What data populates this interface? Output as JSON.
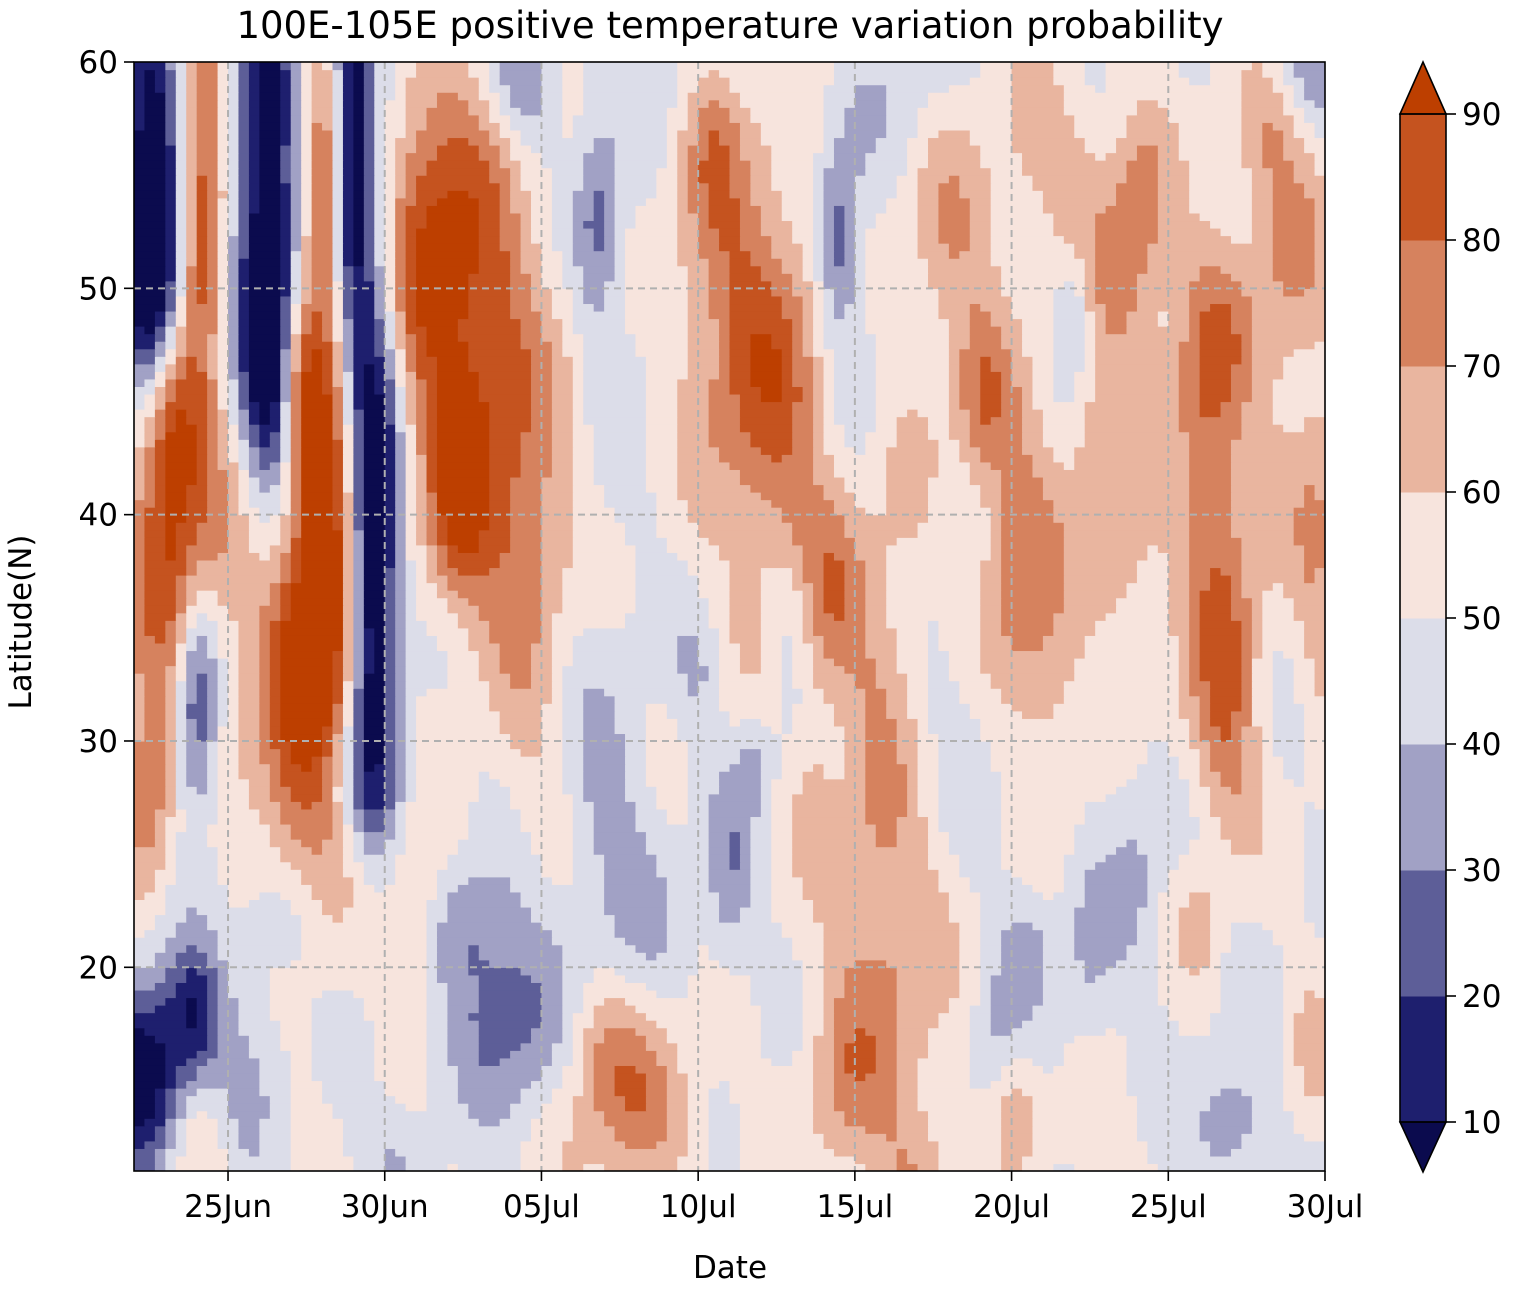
{
  "chart_data": {
    "type": "heatmap",
    "title": "100E-105E positive temperature variation probability",
    "xlabel": "Date",
    "ylabel": "Latitude(N)",
    "x_start_date": "2020-06-22",
    "x_tick_labels": [
      "25Jun",
      "30Jun",
      "05Jul",
      "10Jul",
      "15Jul",
      "20Jul",
      "25Jul",
      "30Jul"
    ],
    "x_tick_days": [
      3,
      8,
      13,
      18,
      23,
      28,
      33,
      38
    ],
    "xlim_days": [
      0,
      38
    ],
    "y_ticks": [
      20,
      30,
      40,
      50,
      60
    ],
    "ylim": [
      11,
      60
    ],
    "grid": true,
    "grid_style": "dashed",
    "colorbar": {
      "levels": [
        10,
        20,
        30,
        40,
        50,
        60,
        70,
        80,
        90
      ],
      "tick_labels": [
        "10",
        "20",
        "30",
        "40",
        "50",
        "60",
        "70",
        "80",
        "90"
      ],
      "colors": [
        "#1e1f6e",
        "#5d5e98",
        "#a1a1c5",
        "#dcdde9",
        "#f7e4dd",
        "#e9b59f",
        "#d6825e",
        "#c5531f",
        "#bd3f00"
      ],
      "under_color": "#0b0b4e",
      "over_color": "#bd3f00",
      "extend": "both"
    },
    "grid_resolution": {
      "dx_days": 1,
      "dy_deg": 1
    },
    "features": [
      {
        "x": 0.5,
        "y": 56,
        "sx": 0.6,
        "sy": 6,
        "a": -48
      },
      {
        "x": 0.6,
        "y": 50,
        "sx": 0.7,
        "sy": 3,
        "a": -40
      },
      {
        "x": 1.2,
        "y": 44,
        "sx": 0.6,
        "sy": 3,
        "a": 32
      },
      {
        "x": 1.4,
        "y": 38,
        "sx": 1.2,
        "sy": 5,
        "a": 38
      },
      {
        "x": 0.4,
        "y": 28,
        "sx": 0.6,
        "sy": 3,
        "a": 28
      },
      {
        "x": 2.0,
        "y": 32,
        "sx": 0.5,
        "sy": 4,
        "a": -40
      },
      {
        "x": 2.2,
        "y": 54,
        "sx": 0.5,
        "sy": 6,
        "a": 38
      },
      {
        "x": 0.4,
        "y": 15,
        "sx": 1.0,
        "sy": 3,
        "a": -52
      },
      {
        "x": 2.0,
        "y": 18,
        "sx": 0.6,
        "sy": 2,
        "a": -30
      },
      {
        "x": 4.2,
        "y": 54,
        "sx": 0.7,
        "sy": 8,
        "a": -50
      },
      {
        "x": 4.5,
        "y": 46,
        "sx": 0.6,
        "sy": 4,
        "a": -35
      },
      {
        "x": 5.5,
        "y": 32,
        "sx": 1.2,
        "sy": 7,
        "a": 44
      },
      {
        "x": 6.2,
        "y": 40,
        "sx": 0.8,
        "sy": 6,
        "a": 38
      },
      {
        "x": 5.2,
        "y": 46,
        "sx": 0.5,
        "sy": 3,
        "a": 30
      },
      {
        "x": 6.0,
        "y": 54,
        "sx": 0.5,
        "sy": 4,
        "a": 28
      },
      {
        "x": 7.0,
        "y": 60,
        "sx": 0.4,
        "sy": 3,
        "a": -30
      },
      {
        "x": 7.6,
        "y": 46,
        "sx": 0.7,
        "sy": 9,
        "a": -45
      },
      {
        "x": 7.0,
        "y": 54,
        "sx": 0.4,
        "sy": 5,
        "a": -35
      },
      {
        "x": 7.2,
        "y": 28,
        "sx": 1.0,
        "sy": 2.5,
        "a": -22
      },
      {
        "x": 7.6,
        "y": 36,
        "sx": 0.5,
        "sy": 6,
        "a": -42
      },
      {
        "x": 9.5,
        "y": 53,
        "sx": 1.8,
        "sy": 5,
        "a": 38
      },
      {
        "x": 11.0,
        "y": 45,
        "sx": 1.8,
        "sy": 5,
        "a": 32
      },
      {
        "x": 12.5,
        "y": 37,
        "sx": 1.2,
        "sy": 4,
        "a": 25
      },
      {
        "x": 10.3,
        "y": 40,
        "sx": 0.6,
        "sy": 3,
        "a": 25
      },
      {
        "x": 9.0,
        "y": 22,
        "sx": 0.7,
        "sy": 3,
        "a": 18
      },
      {
        "x": 11.8,
        "y": 18,
        "sx": 1.3,
        "sy": 3,
        "a": -28
      },
      {
        "x": 10.5,
        "y": 22,
        "sx": 1.0,
        "sy": 2,
        "a": -14
      },
      {
        "x": 16.0,
        "y": 14,
        "sx": 1.5,
        "sy": 3,
        "a": 25
      },
      {
        "x": 14.8,
        "y": 17,
        "sx": 0.8,
        "sy": 2,
        "a": 12
      },
      {
        "x": 19.0,
        "y": 50,
        "sx": 1.5,
        "sy": 6,
        "a": 22
      },
      {
        "x": 20.5,
        "y": 44,
        "sx": 1.3,
        "sy": 6,
        "a": 25
      },
      {
        "x": 22.2,
        "y": 36,
        "sx": 1.0,
        "sy": 3,
        "a": 22
      },
      {
        "x": 21.5,
        "y": 29,
        "sx": 0.6,
        "sy": 3,
        "a": 12
      },
      {
        "x": 12.5,
        "y": 59,
        "sx": 0.8,
        "sy": 2,
        "a": -20
      },
      {
        "x": 18.5,
        "y": 57,
        "sx": 0.6,
        "sy": 3,
        "a": 15
      },
      {
        "x": 22.5,
        "y": 52,
        "sx": 0.5,
        "sy": 3,
        "a": -30
      },
      {
        "x": 21.0,
        "y": 32,
        "sx": 0.5,
        "sy": 3,
        "a": -10
      },
      {
        "x": 19.8,
        "y": 29,
        "sx": 0.4,
        "sy": 1.5,
        "a": -12
      },
      {
        "x": 19.0,
        "y": 24,
        "sx": 0.5,
        "sy": 3,
        "a": -16
      },
      {
        "x": 18.0,
        "y": 33,
        "sx": 0.5,
        "sy": 2,
        "a": -10
      },
      {
        "x": 15.0,
        "y": 26,
        "sx": 1.0,
        "sy": 4,
        "a": -12
      },
      {
        "x": 24.5,
        "y": 38,
        "sx": 0.8,
        "sy": 7,
        "a": 10
      },
      {
        "x": 23.5,
        "y": 30,
        "sx": 0.8,
        "sy": 5,
        "a": 10
      },
      {
        "x": 24.0,
        "y": 20,
        "sx": 1.3,
        "sy": 6,
        "a": 22
      },
      {
        "x": 22.5,
        "y": 15,
        "sx": 0.8,
        "sy": 3,
        "a": 15
      },
      {
        "x": 25.0,
        "y": 10,
        "sx": 1.0,
        "sy": 3,
        "a": 15
      },
      {
        "x": 26.0,
        "y": 52,
        "sx": 1.0,
        "sy": 4,
        "a": 20
      },
      {
        "x": 27.0,
        "y": 45,
        "sx": 0.6,
        "sy": 2.5,
        "a": 22
      },
      {
        "x": 28.5,
        "y": 36,
        "sx": 1.0,
        "sy": 4,
        "a": 25
      },
      {
        "x": 28.0,
        "y": 42,
        "sx": 0.8,
        "sy": 4,
        "a": 15
      },
      {
        "x": 29.0,
        "y": 56,
        "sx": 1.5,
        "sy": 3,
        "a": 15
      },
      {
        "x": 31.5,
        "y": 50,
        "sx": 1.0,
        "sy": 4,
        "a": 20
      },
      {
        "x": 32.2,
        "y": 54,
        "sx": 0.6,
        "sy": 3,
        "a": 15
      },
      {
        "x": 31.5,
        "y": 38,
        "sx": 0.8,
        "sy": 3,
        "a": 18
      },
      {
        "x": 30.5,
        "y": 43,
        "sx": 0.6,
        "sy": 3,
        "a": 12
      },
      {
        "x": 29.5,
        "y": 30,
        "sx": 0.8,
        "sy": 3,
        "a": 10
      },
      {
        "x": 28.2,
        "y": 14,
        "sx": 0.5,
        "sy": 2,
        "a": 12
      },
      {
        "x": 34.2,
        "y": 42,
        "sx": 0.8,
        "sy": 6,
        "a": 25
      },
      {
        "x": 35.0,
        "y": 33,
        "sx": 0.7,
        "sy": 5,
        "a": 25
      },
      {
        "x": 34.5,
        "y": 48,
        "sx": 1.0,
        "sy": 3,
        "a": 15
      },
      {
        "x": 34.0,
        "y": 29,
        "sx": 1.0,
        "sy": 3,
        "a": 12
      },
      {
        "x": 36.8,
        "y": 52,
        "sx": 1.0,
        "sy": 4,
        "a": 20
      },
      {
        "x": 36.0,
        "y": 57,
        "sx": 0.8,
        "sy": 2,
        "a": 15
      },
      {
        "x": 37.8,
        "y": 38,
        "sx": 0.5,
        "sy": 5,
        "a": 15
      },
      {
        "x": 37.0,
        "y": 42,
        "sx": 1.0,
        "sy": 4,
        "a": 10
      },
      {
        "x": 34.0,
        "y": 22,
        "sx": 0.5,
        "sy": 2,
        "a": 12
      },
      {
        "x": 32.0,
        "y": 23,
        "sx": 0.5,
        "sy": 3,
        "a": -8
      },
      {
        "x": 28.5,
        "y": 21,
        "sx": 0.7,
        "sy": 2,
        "a": -12
      },
      {
        "x": 30.5,
        "y": 20,
        "sx": 0.6,
        "sy": 3,
        "a": -12
      },
      {
        "x": 27.5,
        "y": 17,
        "sx": 0.6,
        "sy": 2,
        "a": -10
      },
      {
        "x": 35.0,
        "y": 13,
        "sx": 0.8,
        "sy": 2,
        "a": -20
      },
      {
        "x": 37.5,
        "y": 16,
        "sx": 0.5,
        "sy": 3,
        "a": 10
      },
      {
        "x": 37.5,
        "y": 60,
        "sx": 1.0,
        "sy": 2,
        "a": -15
      },
      {
        "x": 14.8,
        "y": 53,
        "sx": 0.5,
        "sy": 3,
        "a": -22
      },
      {
        "x": 25.0,
        "y": 58,
        "sx": 1.5,
        "sy": 3,
        "a": -8
      },
      {
        "x": 15.5,
        "y": 48,
        "sx": 1.3,
        "sy": 5,
        "a": -6
      },
      {
        "x": 21.0,
        "y": 36,
        "sx": 0.6,
        "sy": 2,
        "a": -12
      },
      {
        "x": 17.0,
        "y": 60,
        "sx": 2.0,
        "sy": 2,
        "a": -6
      },
      {
        "x": 30.0,
        "y": 49,
        "sx": 0.4,
        "sy": 2,
        "a": -16
      },
      {
        "x": 23.5,
        "y": 47,
        "sx": 1.0,
        "sy": 3,
        "a": -5
      },
      {
        "x": 14.0,
        "y": 35,
        "sx": 1.2,
        "sy": 4,
        "a": -8
      },
      {
        "x": 26.5,
        "y": 32,
        "sx": 1.5,
        "sy": 4,
        "a": -6
      },
      {
        "x": 33.0,
        "y": 27,
        "sx": 1.5,
        "sy": 3,
        "a": -8
      },
      {
        "x": 16.5,
        "y": 22,
        "sx": 1.5,
        "sy": 4,
        "a": -6
      },
      {
        "x": 5.0,
        "y": 22,
        "sx": 1.0,
        "sy": 2,
        "a": -14
      },
      {
        "x": 4.0,
        "y": 17,
        "sx": 0.8,
        "sy": 3,
        "a": -10
      },
      {
        "x": 3.2,
        "y": 13,
        "sx": 0.6,
        "sy": 3,
        "a": -8
      },
      {
        "x": 2.0,
        "y": 12,
        "sx": 1.0,
        "sy": 2,
        "a": 15
      },
      {
        "x": 8.5,
        "y": 12,
        "sx": 1.0,
        "sy": 2,
        "a": -10
      },
      {
        "x": 10.5,
        "y": 12,
        "sx": 0.8,
        "sy": 2,
        "a": 5
      },
      {
        "x": 13.0,
        "y": 28,
        "sx": 1.0,
        "sy": 3,
        "a": 8
      },
      {
        "x": 30.5,
        "y": 12,
        "sx": 0.8,
        "sy": 2,
        "a": 8
      }
    ]
  }
}
